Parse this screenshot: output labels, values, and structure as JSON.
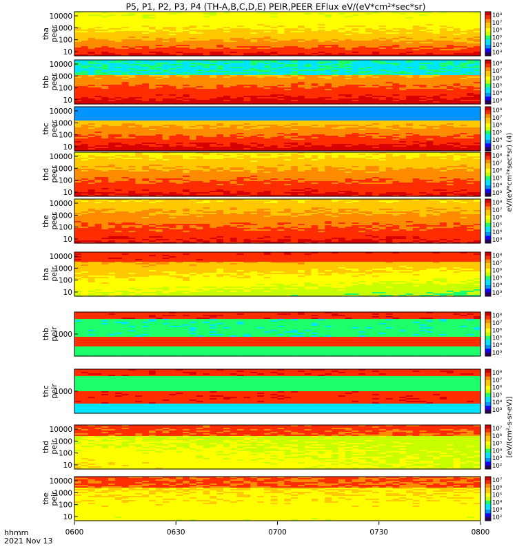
{
  "title": "P5, P1, P2, P3, P4 (TH-A,B,C,D,E) PEIR,PEER EFlux eV/(eV*cm²*sec*sr)",
  "time_axis": {
    "label_line1": "hhmm",
    "label_line2": "2021 Nov 13",
    "ticks": [
      "0600",
      "0630",
      "0700",
      "0730",
      "0800"
    ],
    "range": [
      "06:00",
      "08:00"
    ]
  },
  "colors": {
    "colormap": [
      "#2a0060",
      "#1400ff",
      "#0094ff",
      "#00e5ff",
      "#1cff6a",
      "#c8ff00",
      "#ffff00",
      "#ffc800",
      "#ff8c00",
      "#ff2d00",
      "#d70000"
    ]
  },
  "panels": [
    {
      "label_top": "tha",
      "label_bottom": "peer",
      "yticks": [
        "10000",
        "1000",
        "100",
        "10"
      ],
      "cbar_ticks": [
        "10⁸",
        "10⁷",
        "10⁶",
        "10⁵",
        "10⁴",
        "10³"
      ]
    },
    {
      "label_top": "thb",
      "label_bottom": "peer",
      "yticks": [
        "10000",
        "1000",
        "100",
        "10"
      ],
      "cbar_ticks": [
        "10⁸",
        "10⁷",
        "10⁶",
        "10⁵",
        "10⁴",
        "10³"
      ]
    },
    {
      "label_top": "thc",
      "label_bottom": "peer",
      "yticks": [
        "10000",
        "1000",
        "100",
        "10"
      ],
      "cbar_ticks": [
        "10⁸",
        "10⁷",
        "10⁶",
        "10⁵",
        "10⁴",
        "10³"
      ]
    },
    {
      "label_top": "thd",
      "label_bottom": "peer",
      "yticks": [
        "10000",
        "1000",
        "100",
        "10"
      ],
      "cbar_ticks": [
        "10⁸",
        "10⁷",
        "10⁶",
        "10⁵",
        "10⁴",
        "10³"
      ]
    },
    {
      "label_top": "the",
      "label_bottom": "peer",
      "yticks": [
        "10000",
        "1000",
        "100",
        "10"
      ],
      "cbar_ticks": [
        "10⁸",
        "10⁷",
        "10⁶",
        "10⁵",
        "10⁴",
        "10³"
      ]
    },
    {
      "label_top": "tha",
      "label_bottom": "peir",
      "yticks": [
        "10000",
        "1000",
        "100",
        "10"
      ],
      "cbar_ticks": [
        "10⁸",
        "10⁷",
        "10⁶",
        "10⁵",
        "10⁴",
        "10³"
      ]
    },
    {
      "label_top": "thb",
      "label_bottom": "peir",
      "yticks": [
        "1000"
      ],
      "cbar_ticks": [
        "10⁸",
        "10⁷",
        "10⁶",
        "10⁵",
        "10⁴",
        "10³"
      ]
    },
    {
      "label_top": "thc",
      "label_bottom": "peir",
      "yticks": [
        "1000"
      ],
      "cbar_ticks": [
        "10⁸",
        "10⁷",
        "10⁶",
        "10⁵",
        "10⁴",
        "10³"
      ]
    },
    {
      "label_top": "thd",
      "label_bottom": "peir",
      "yticks": [
        "10000",
        "1000",
        "100",
        "10"
      ],
      "cbar_ticks": [
        "10⁷",
        "10⁶",
        "10⁵",
        "10⁴",
        "10³",
        "10²"
      ]
    },
    {
      "label_top": "the",
      "label_bottom": "peir",
      "yticks": [
        "10000",
        "1000",
        "100",
        "10"
      ],
      "cbar_ticks": [
        "10⁷",
        "10⁶",
        "10⁵",
        "10⁴",
        "10³",
        "10²"
      ]
    }
  ],
  "cbar_labels": [
    "eV/(eV*cm²*sec*sr) (4)",
    "[eV/(cm²-s-sr-eV)]"
  ],
  "chart_data": {
    "type": "heatmap",
    "title": "P5, P1, P2, P3, P4 (TH-A,B,C,D,E) PEIR,PEER EFlux eV/(eV*cm²*sec*sr)",
    "x_axis": {
      "label": "hhmm / 2021 Nov 13",
      "ticks": [
        "0600",
        "0630",
        "0700",
        "0730",
        "0800"
      ]
    },
    "y_axis": {
      "scale": "log",
      "ticks": [
        10,
        100,
        1000,
        10000
      ]
    },
    "color_scale": "log",
    "panels": [
      "tha peer",
      "thb peer",
      "thc peer",
      "thd peer",
      "the peer",
      "tha peir",
      "thb peir",
      "thc peir",
      "thd peir",
      "the peir"
    ]
  }
}
